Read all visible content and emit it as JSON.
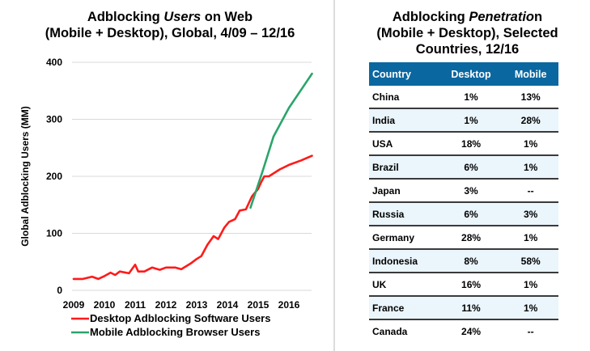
{
  "left_panel": {
    "title_line1_pre": "Adblocking ",
    "title_line1_em": "Users",
    "title_line1_post": " on Web",
    "title_line2": "(Mobile + Desktop), Global, 4/09 – 12/16"
  },
  "right_panel": {
    "title_line1_pre": "Adblocking ",
    "title_line1_em": "Penetratio",
    "title_line1_post": "n",
    "title_line2": "(Mobile + Desktop), Selected",
    "title_line3": "Countries, 12/16"
  },
  "colors": {
    "desktop": "#ff1a1a",
    "mobile": "#2aa56a",
    "header": "#0b67a0",
    "alt_row": "#eaf5fc",
    "grid": "#d9d9d9"
  },
  "chart_data": [
    {
      "type": "line",
      "title": "Adblocking Users on Web (Mobile + Desktop), Global, 4/09 – 12/16",
      "xlabel": "",
      "ylabel": "Global Adblocking Users (MM)",
      "xlim": [
        2009,
        2016.8
      ],
      "ylim": [
        0,
        400
      ],
      "x_ticks": [
        "2009",
        "2010",
        "2011",
        "2012",
        "2013",
        "2014",
        "2015",
        "2016"
      ],
      "y_ticks": [
        "0",
        "100",
        "200",
        "300",
        "400"
      ],
      "grid": true,
      "legend_position": "bottom",
      "series": [
        {
          "name": "Desktop Adblocking Software Users",
          "x": [
            2009.0,
            2009.3,
            2009.6,
            2009.8,
            2010.0,
            2010.2,
            2010.35,
            2010.5,
            2010.8,
            2011.0,
            2011.1,
            2011.3,
            2011.55,
            2011.8,
            2012.0,
            2012.3,
            2012.5,
            2012.8,
            2013.0,
            2013.15,
            2013.35,
            2013.55,
            2013.7,
            2013.9,
            2014.05,
            2014.25,
            2014.4,
            2014.6,
            2014.8,
            2015.0,
            2015.1,
            2015.2,
            2015.35,
            2015.7,
            2016.0,
            2016.4,
            2016.75
          ],
          "values": [
            20,
            20,
            24,
            20,
            25,
            31,
            27,
            33,
            30,
            45,
            33,
            33,
            40,
            36,
            40,
            40,
            37,
            47,
            55,
            60,
            80,
            95,
            90,
            110,
            120,
            125,
            140,
            142,
            165,
            178,
            190,
            200,
            200,
            212,
            220,
            228,
            236
          ]
        },
        {
          "name": "Mobile Adblocking Browser Users",
          "x": [
            2014.75,
            2015.15,
            2015.5,
            2016.0,
            2016.75
          ],
          "values": [
            145,
            210,
            270,
            320,
            380
          ]
        }
      ]
    },
    {
      "type": "table",
      "title": "Adblocking Penetration (Mobile + Desktop), Selected Countries, 12/16",
      "columns": [
        "Country",
        "Desktop",
        "Mobile"
      ],
      "rows": [
        [
          "China",
          "1%",
          "13%"
        ],
        [
          "India",
          "1%",
          "28%"
        ],
        [
          "USA",
          "18%",
          "1%"
        ],
        [
          "Brazil",
          "6%",
          "1%"
        ],
        [
          "Japan",
          "3%",
          "--"
        ],
        [
          "Russia",
          "6%",
          "3%"
        ],
        [
          "Germany",
          "28%",
          "1%"
        ],
        [
          "Indonesia",
          "8%",
          "58%"
        ],
        [
          "UK",
          "16%",
          "1%"
        ],
        [
          "France",
          "11%",
          "1%"
        ],
        [
          "Canada",
          "24%",
          "--"
        ]
      ]
    }
  ]
}
